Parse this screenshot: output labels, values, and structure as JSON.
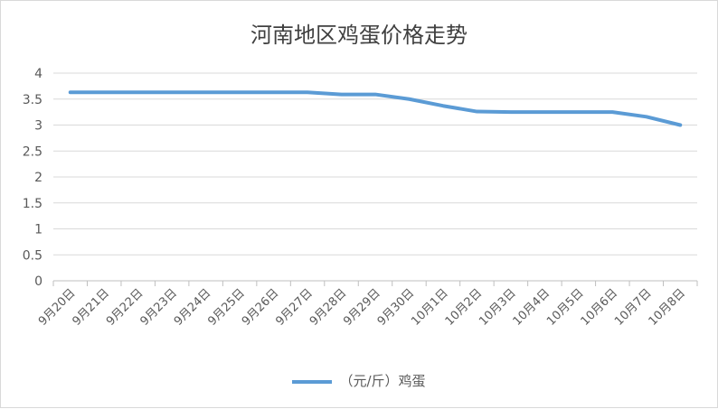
{
  "chart_data": {
    "type": "line",
    "title": "河南地区鸡蛋价格走势",
    "xlabel": "",
    "ylabel": "",
    "ylim": [
      0,
      4
    ],
    "yticks": [
      0,
      0.5,
      1,
      1.5,
      2,
      2.5,
      3,
      3.5,
      4
    ],
    "ytick_labels": [
      "0",
      "0.5",
      "1",
      "1.5",
      "2",
      "2.5",
      "3",
      "3.5",
      "4"
    ],
    "grid": true,
    "legend_position": "bottom",
    "categories": [
      "9月20日",
      "9月21日",
      "9月22日",
      "9月23日",
      "9月24日",
      "9月25日",
      "9月26日",
      "9月27日",
      "9月28日",
      "9月29日",
      "9月30日",
      "10月1日",
      "10月2日",
      "10月3日",
      "10月4日",
      "10月5日",
      "10月6日",
      "10月7日",
      "10月8日"
    ],
    "series": [
      {
        "name": "（元/斤）鸡蛋",
        "color": "#5b9bd5",
        "values": [
          3.63,
          3.63,
          3.63,
          3.63,
          3.63,
          3.63,
          3.63,
          3.63,
          3.59,
          3.59,
          3.5,
          3.37,
          3.26,
          3.25,
          3.25,
          3.25,
          3.25,
          3.16,
          3.0
        ]
      }
    ]
  }
}
